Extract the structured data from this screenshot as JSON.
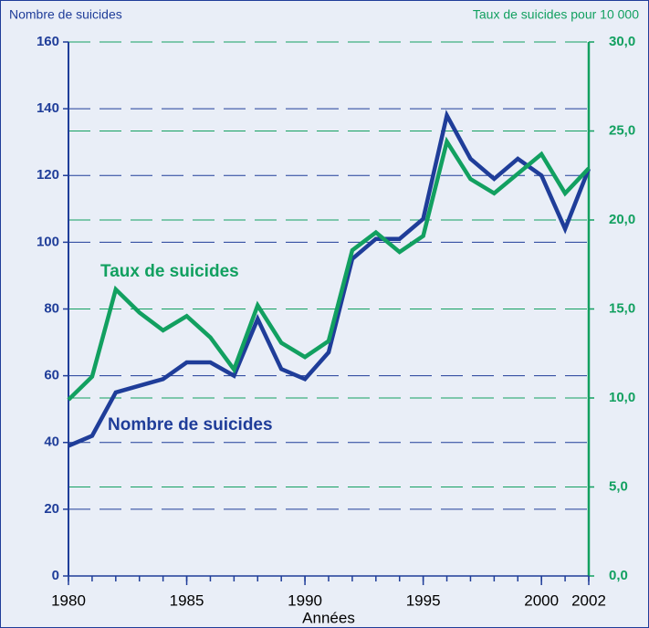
{
  "chart_data": {
    "type": "line",
    "y_label": "Nombre de suicides",
    "y2_label": "Taux de suicides pour 10 000",
    "x_label": "Années",
    "annotations": [
      "Taux de suicides",
      "Nombre de suicides"
    ],
    "x": [
      1980,
      1981,
      1982,
      1983,
      1984,
      1985,
      1986,
      1987,
      1988,
      1989,
      1990,
      1991,
      1992,
      1993,
      1994,
      1995,
      1996,
      1997,
      1998,
      1999,
      2000,
      2001,
      2002
    ],
    "xlim": [
      1980,
      2002
    ],
    "xticks": [
      1980,
      1985,
      1990,
      1995,
      2000,
      2002
    ],
    "ylim": [
      0,
      160
    ],
    "yticks": [
      0,
      20,
      40,
      60,
      80,
      100,
      120,
      140,
      160
    ],
    "y2lim": [
      0,
      30
    ],
    "y2ticks": [
      {
        "value": 0,
        "label": "0,0"
      },
      {
        "value": 5,
        "label": "5,0"
      },
      {
        "value": 10,
        "label": "10,0"
      },
      {
        "value": 15,
        "label": "15,0"
      },
      {
        "value": 20,
        "label": "20,0"
      },
      {
        "value": 25,
        "label": "25,0"
      },
      {
        "value": 30,
        "label": "30,0"
      }
    ],
    "grid": true,
    "series": [
      {
        "name": "Nombre de suicides",
        "color": "#1f3d99",
        "values": [
          39,
          42,
          55,
          57,
          59,
          64,
          64,
          60,
          77,
          62,
          59,
          67,
          95,
          101,
          101,
          107,
          138,
          125,
          119,
          125,
          120,
          104,
          122
        ]
      },
      {
        "name": "Taux de suicides",
        "color": "#12a060",
        "axis": "y2",
        "values": [
          9.9,
          11.2,
          16.1,
          14.8,
          13.8,
          14.6,
          13.4,
          11.6,
          15.2,
          13.1,
          12.3,
          13.2,
          18.3,
          19.3,
          18.2,
          19.1,
          24.4,
          22.3,
          21.5,
          22.6,
          23.7,
          21.5,
          22.9
        ]
      }
    ]
  }
}
